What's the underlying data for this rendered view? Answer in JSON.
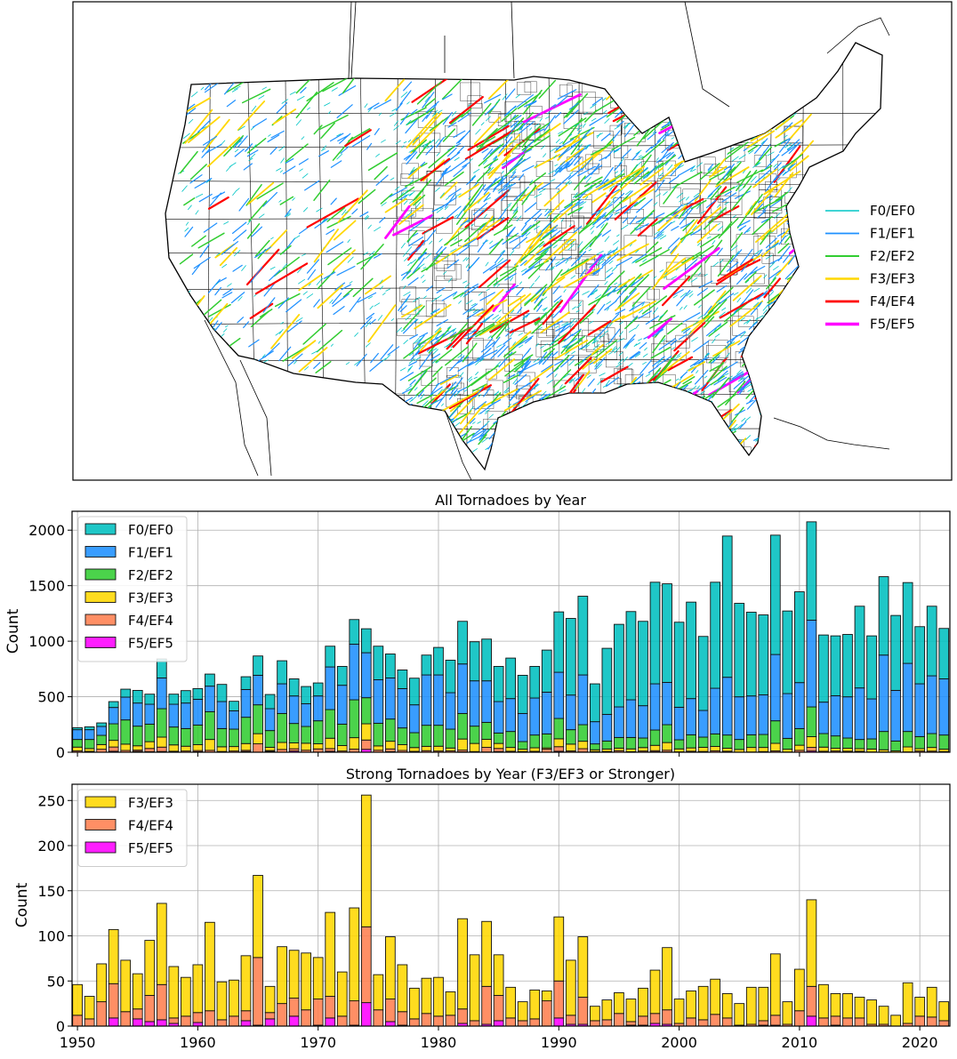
{
  "map": {
    "legend": [
      {
        "label": "F0/EF0",
        "color": "#00c5c5"
      },
      {
        "label": "F1/EF1",
        "color": "#1e90ff"
      },
      {
        "label": "F2/EF2",
        "color": "#32cd32"
      },
      {
        "label": "F3/EF3",
        "color": "#ffd700"
      },
      {
        "label": "F4/EF4",
        "color": "#ff0000"
      },
      {
        "label": "F5/EF5",
        "color": "#ff00ff"
      }
    ]
  },
  "chart_data": [
    {
      "type": "bar",
      "stacked": true,
      "title": "All Tornadoes by Year",
      "xlabel": "",
      "ylabel": "Count",
      "ylim": [
        0,
        2170
      ],
      "xlim": [
        1949.55,
        2022.5
      ],
      "yticks": [
        0,
        500,
        1000,
        1500,
        2000
      ],
      "grid": true,
      "legend_placement": "upper-left",
      "x_start": 1950,
      "series": [
        {
          "name": "F0/EF0",
          "color": "#00bfbf",
          "values": [
            18,
            26,
            32,
            53,
            72,
            114,
            91,
            171,
            91,
            112,
            96,
            109,
            155,
            86,
            115,
            174,
            128,
            208,
            154,
            155,
            117,
            187,
            170,
            222,
            216,
            302,
            216,
            168,
            240,
            179,
            248,
            293,
            384,
            352,
            376,
            317,
            365,
            344,
            285,
            379,
            544,
            690,
            709,
            341,
            595,
            744,
            795,
            760,
            915,
            888,
            766,
            869,
            667,
            955,
            1272,
            842,
            754,
            720,
            1075,
            744,
            818,
            886,
            605,
            539,
            562,
            736,
            568,
            706,
            675,
            728,
            515,
            627,
            454
          ]
        },
        {
          "name": "F1/EF1",
          "color": "#1e90ff",
          "values": [
            88,
            88,
            80,
            147,
            205,
            208,
            179,
            277,
            205,
            230,
            232,
            230,
            243,
            165,
            250,
            266,
            197,
            267,
            248,
            205,
            224,
            384,
            350,
            501,
            405,
            392,
            370,
            354,
            251,
            453,
            453,
            328,
            446,
            408,
            374,
            283,
            296,
            253,
            333,
            376,
            416,
            312,
            448,
            200,
            240,
            275,
            339,
            291,
            416,
            381,
            293,
            326,
            240,
            411,
            520,
            384,
            350,
            357,
            597,
            403,
            414,
            781,
            283,
            362,
            371,
            464,
            360,
            688,
            456,
            613,
            475,
            520,
            506
          ]
        },
        {
          "name": "F2/EF2",
          "color": "#32cd32",
          "values": [
            69,
            82,
            83,
            149,
            218,
            177,
            158,
            256,
            161,
            159,
            177,
            250,
            164,
            157,
            237,
            260,
            151,
            261,
            175,
            151,
            207,
            258,
            193,
            341,
            235,
            204,
            200,
            151,
            134,
            190,
            189,
            170,
            230,
            156,
            153,
            94,
            144,
            69,
            115,
            126,
            183,
            130,
            149,
            53,
            72,
            96,
            103,
            86,
            138,
            161,
            82,
            118,
            92,
            113,
            119,
            90,
            114,
            117,
            203,
            98,
            150,
            268,
            122,
            111,
            92,
            83,
            91,
            165,
            89,
            139,
            109,
            125,
            128
          ]
        },
        {
          "name": "F3/EF3",
          "color": "#ffd700",
          "values": [
            34,
            25,
            42,
            60,
            57,
            39,
            61,
            90,
            57,
            43,
            53,
            98,
            42,
            40,
            61,
            91,
            29,
            63,
            53,
            63,
            46,
            93,
            49,
            103,
            146,
            39,
            69,
            52,
            34,
            39,
            43,
            26,
            100,
            73,
            72,
            45,
            34,
            21,
            32,
            11,
            71,
            61,
            67,
            16,
            22,
            23,
            25,
            31,
            48,
            69,
            27,
            30,
            37,
            39,
            27,
            24,
            41,
            37,
            68,
            25,
            46,
            96,
            37,
            25,
            27,
            23,
            27,
            20,
            12,
            45,
            21,
            33,
            21
          ]
        },
        {
          "name": "F4/EF4",
          "color": "#ff7f50",
          "values": [
            12,
            8,
            27,
            38,
            16,
            11,
            29,
            39,
            6,
            11,
            11,
            17,
            7,
            11,
            11,
            75,
            7,
            25,
            20,
            18,
            29,
            24,
            11,
            27,
            84,
            18,
            25,
            15,
            8,
            14,
            11,
            12,
            16,
            6,
            42,
            28,
            9,
            6,
            8,
            28,
            41,
            10,
            30,
            6,
            7,
            14,
            4,
            10,
            11,
            16,
            3,
            9,
            7,
            13,
            9,
            1,
            2,
            5,
            11,
            2,
            17,
            33,
            9,
            10,
            9,
            9,
            2,
            2,
            0,
            3,
            11,
            10,
            6
          ]
        },
        {
          "name": "F5/EF5",
          "color": "#ff00ff",
          "values": [
            0,
            0,
            0,
            9,
            0,
            8,
            5,
            7,
            3,
            0,
            4,
            0,
            0,
            0,
            6,
            1,
            8,
            0,
            11,
            0,
            1,
            9,
            0,
            1,
            26,
            0,
            5,
            1,
            0,
            0,
            0,
            0,
            3,
            0,
            2,
            6,
            0,
            0,
            0,
            0,
            9,
            2,
            2,
            0,
            0,
            0,
            1,
            1,
            3,
            2,
            0,
            0,
            0,
            0,
            0,
            0,
            0,
            1,
            1,
            0,
            0,
            11,
            0,
            1,
            0,
            0,
            0,
            0,
            0,
            0,
            0,
            0,
            0
          ]
        }
      ]
    },
    {
      "type": "bar",
      "stacked": true,
      "title": "Strong Tornadoes by Year (F3/EF3 or Stronger)",
      "xlabel": "",
      "ylabel": "Count",
      "ylim": [
        0,
        268
      ],
      "xlim": [
        1949.55,
        2022.5
      ],
      "yticks": [
        0,
        50,
        100,
        150,
        200,
        250
      ],
      "xticks": [
        1950,
        1960,
        1970,
        1980,
        1990,
        2000,
        2010,
        2020
      ],
      "grid": true,
      "legend_placement": "upper-left",
      "x_start": 1950,
      "series": [
        {
          "name": "F3/EF3",
          "color": "#ffd700",
          "values": [
            34,
            25,
            42,
            60,
            57,
            39,
            61,
            90,
            57,
            43,
            53,
            98,
            42,
            40,
            61,
            91,
            29,
            63,
            53,
            63,
            46,
            93,
            49,
            103,
            146,
            39,
            69,
            52,
            34,
            39,
            43,
            26,
            100,
            73,
            72,
            45,
            34,
            21,
            32,
            11,
            71,
            61,
            67,
            16,
            22,
            23,
            25,
            31,
            48,
            69,
            27,
            30,
            37,
            39,
            27,
            24,
            41,
            37,
            68,
            25,
            46,
            96,
            37,
            25,
            27,
            23,
            27,
            20,
            12,
            45,
            21,
            33,
            21
          ]
        },
        {
          "name": "F4/EF4",
          "color": "#ff7f50",
          "values": [
            12,
            8,
            27,
            38,
            16,
            11,
            29,
            39,
            6,
            11,
            11,
            17,
            7,
            11,
            11,
            75,
            7,
            25,
            20,
            18,
            29,
            24,
            11,
            27,
            84,
            18,
            25,
            15,
            8,
            14,
            11,
            12,
            16,
            6,
            42,
            28,
            9,
            6,
            8,
            28,
            41,
            10,
            30,
            6,
            7,
            14,
            4,
            10,
            11,
            16,
            3,
            9,
            7,
            13,
            9,
            1,
            2,
            5,
            11,
            2,
            17,
            33,
            9,
            10,
            9,
            9,
            2,
            2,
            0,
            3,
            11,
            10,
            6
          ]
        },
        {
          "name": "F5/EF5",
          "color": "#ff00ff",
          "values": [
            0,
            0,
            0,
            9,
            0,
            8,
            5,
            7,
            3,
            0,
            4,
            0,
            0,
            0,
            6,
            1,
            8,
            0,
            11,
            0,
            1,
            9,
            0,
            1,
            26,
            0,
            5,
            1,
            0,
            0,
            0,
            0,
            3,
            0,
            2,
            6,
            0,
            0,
            0,
            0,
            9,
            2,
            2,
            0,
            0,
            0,
            1,
            1,
            3,
            2,
            0,
            0,
            0,
            0,
            0,
            0,
            0,
            1,
            1,
            0,
            0,
            11,
            0,
            1,
            0,
            0,
            0,
            0,
            0,
            0,
            0,
            0,
            0
          ]
        }
      ]
    }
  ]
}
